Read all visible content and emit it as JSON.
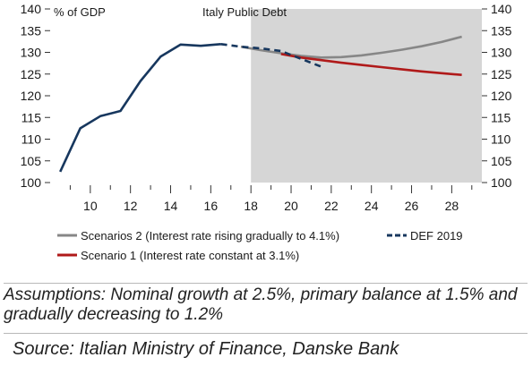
{
  "chart_data": {
    "type": "line",
    "title": "Italy Public Debt",
    "ylabel": "% of GDP",
    "xlabel": "",
    "xlim": [
      8,
      29.5
    ],
    "ylim": [
      100,
      140
    ],
    "x_ticks": [
      "10",
      "12",
      "14",
      "16",
      "18",
      "20",
      "22",
      "24",
      "26",
      "28"
    ],
    "y_ticks": [
      "100",
      "105",
      "110",
      "115",
      "120",
      "125",
      "130",
      "135",
      "140"
    ],
    "shaded_region": {
      "from": 18,
      "to": 29.5,
      "color": "#d6d6d6"
    },
    "grid": false,
    "series": [
      {
        "name": "",
        "color": "#17375e",
        "style": "solid",
        "x": [
          8.5,
          9.5,
          10.5,
          11.5,
          12.5,
          13.5,
          14.5,
          15.5,
          16.5
        ],
        "y": [
          102.5,
          112.5,
          115.3,
          116.5,
          123.4,
          129.0,
          131.8,
          131.5,
          131.9
        ]
      },
      {
        "name": "DEF 2019",
        "color": "#17375e",
        "style": "dashed",
        "x": [
          16.5,
          17.5,
          18.5,
          19.5,
          20.5,
          21.5
        ],
        "y": [
          131.9,
          131.3,
          130.9,
          130.3,
          128.5,
          126.7
        ]
      },
      {
        "name": "Scenarios 2 (Interest rate rising gradually to 4.1%)",
        "color": "#878787",
        "style": "solid",
        "x": [
          17.5,
          18.5,
          19.5,
          20.5,
          21.5,
          22.5,
          23.5,
          24.5,
          25.5,
          26.5,
          27.5,
          28.5
        ],
        "y": [
          131.3,
          130.5,
          129.8,
          129.2,
          128.8,
          128.9,
          129.3,
          129.9,
          130.6,
          131.4,
          132.4,
          133.6
        ]
      },
      {
        "name": "Scenario 1 (Interest rate constant at 3.1%)",
        "color": "#b01a1a",
        "style": "solid",
        "x": [
          19.5,
          20.5,
          21.5,
          22.5,
          23.5,
          24.5,
          25.5,
          26.5,
          27.5,
          28.5
        ],
        "y": [
          129.6,
          128.8,
          128.2,
          127.6,
          127.1,
          126.6,
          126.1,
          125.6,
          125.2,
          124.8
        ]
      }
    ],
    "legend": [
      {
        "label": "Scenarios 2 (Interest rate rising gradually to 4.1%)",
        "color": "#878787",
        "style": "solid"
      },
      {
        "label": "DEF 2019",
        "color": "#17375e",
        "style": "dashed"
      },
      {
        "label": "Scenario 1 (Interest rate constant at 3.1%)",
        "color": "#b01a1a",
        "style": "solid"
      }
    ]
  },
  "notes": {
    "assumptions": "Assumptions: Nominal growth at 2.5%, primary balance at 1.5% and gradually decreasing to 1.2%",
    "source": "Source: Italian Ministry of Finance, Danske Bank"
  }
}
